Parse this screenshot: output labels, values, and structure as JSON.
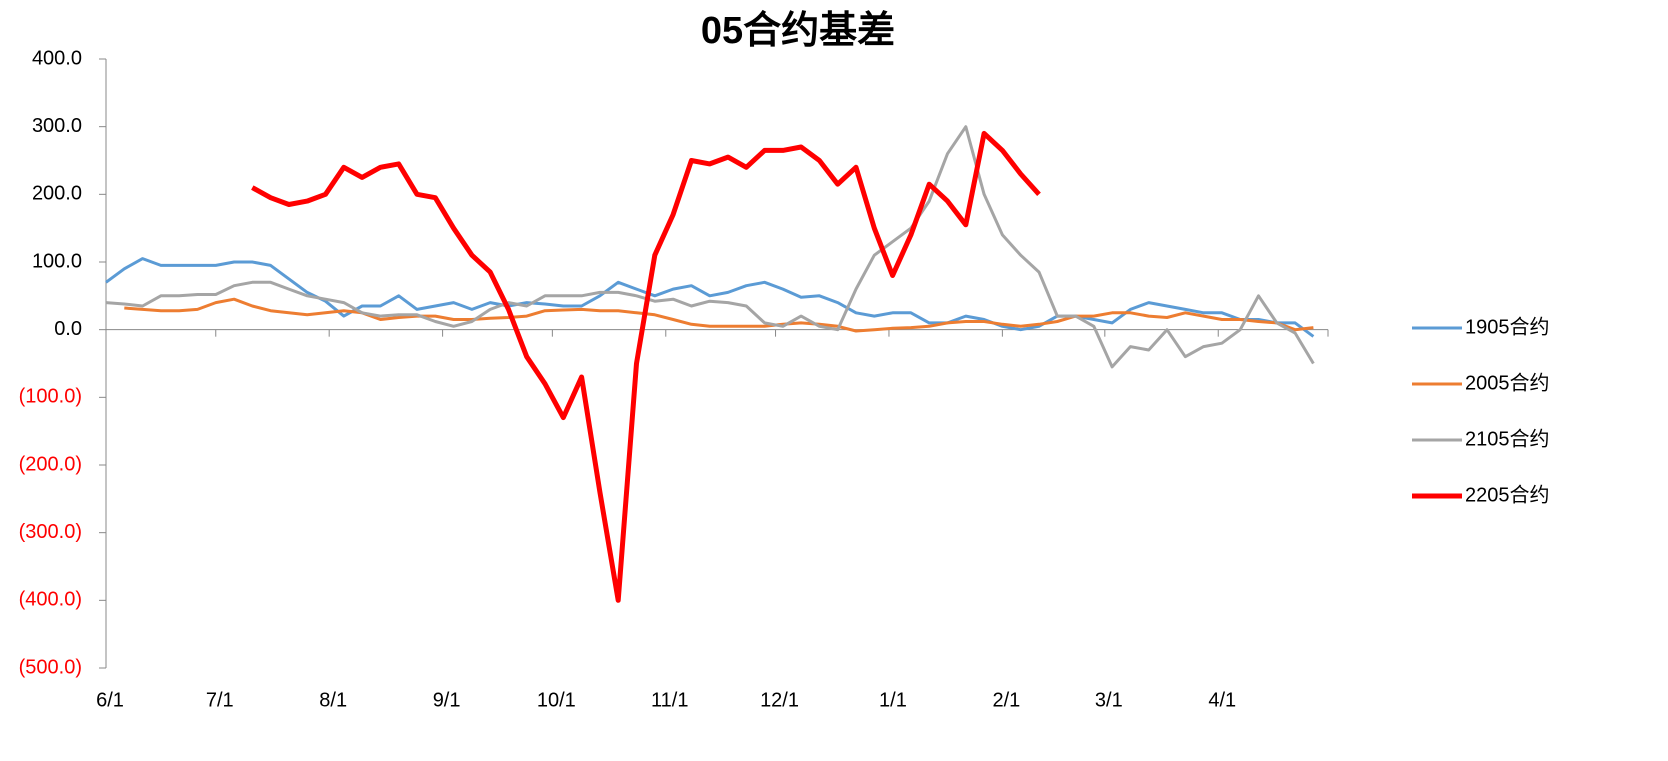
{
  "chart_data": {
    "type": "line",
    "title": "05合约基差",
    "x": [
      0,
      5,
      10,
      15,
      20,
      25,
      30,
      35,
      40,
      45,
      50,
      55,
      60,
      65,
      70,
      75,
      80,
      85,
      90,
      95,
      100,
      105,
      110,
      115,
      120,
      125,
      130,
      135,
      140,
      145,
      150,
      155,
      160,
      165,
      170,
      175,
      180,
      185,
      190,
      195,
      200,
      205,
      210,
      215,
      220,
      225,
      230,
      235,
      240,
      245,
      250,
      255,
      260,
      265,
      270,
      275,
      280,
      285,
      290,
      295,
      300,
      305,
      310,
      315,
      320,
      325,
      330
    ],
    "xlim": [
      0,
      334
    ],
    "xticks": [
      {
        "value": 0,
        "label": "6/1"
      },
      {
        "value": 30,
        "label": "7/1"
      },
      {
        "value": 61,
        "label": "8/1"
      },
      {
        "value": 92,
        "label": "9/1"
      },
      {
        "value": 122,
        "label": "10/1"
      },
      {
        "value": 153,
        "label": "11/1"
      },
      {
        "value": 183,
        "label": "12/1"
      },
      {
        "value": 214,
        "label": "1/1"
      },
      {
        "value": 245,
        "label": "2/1"
      },
      {
        "value": 273,
        "label": "3/1"
      },
      {
        "value": 304,
        "label": "4/1"
      }
    ],
    "ylim": [
      -500,
      400
    ],
    "yticks": [
      {
        "value": 400,
        "label": "400.0"
      },
      {
        "value": 300,
        "label": "300.0"
      },
      {
        "value": 200,
        "label": "200.0"
      },
      {
        "value": 100,
        "label": "100.0"
      },
      {
        "value": 0,
        "label": "0.0"
      },
      {
        "value": -100,
        "label": "(100.0)"
      },
      {
        "value": -200,
        "label": "(200.0)"
      },
      {
        "value": -300,
        "label": "(300.0)"
      },
      {
        "value": -400,
        "label": "(400.0)"
      },
      {
        "value": -500,
        "label": "(500.0)"
      }
    ],
    "negative_tick_color": "#ff0000",
    "grid": false,
    "legend": "right",
    "series": [
      {
        "name": "1905合约",
        "color": "#5b9bd5",
        "linewidth": 3,
        "values": [
          70,
          90,
          105,
          95,
          95,
          95,
          95,
          100,
          100,
          95,
          75,
          55,
          42,
          20,
          35,
          35,
          50,
          30,
          35,
          40,
          30,
          40,
          35,
          40,
          38,
          35,
          35,
          50,
          70,
          60,
          50,
          60,
          65,
          50,
          55,
          65,
          70,
          60,
          48,
          50,
          40,
          25,
          20,
          25,
          25,
          10,
          10,
          20,
          15,
          5,
          0,
          5,
          20,
          20,
          15,
          10,
          30,
          40,
          35,
          30,
          25,
          25,
          15,
          15,
          10,
          10,
          -10
        ]
      },
      {
        "name": "2005合约",
        "color": "#ed7d31",
        "linewidth": 3,
        "values": [
          null,
          32,
          30,
          28,
          28,
          30,
          40,
          45,
          35,
          28,
          25,
          22,
          25,
          28,
          25,
          15,
          18,
          20,
          20,
          15,
          15,
          17,
          18,
          20,
          28,
          29,
          30,
          28,
          28,
          25,
          22,
          15,
          8,
          5,
          5,
          5,
          5,
          8,
          10,
          8,
          5,
          -2,
          0,
          2,
          3,
          5,
          10,
          12,
          12,
          8,
          5,
          8,
          12,
          20,
          20,
          25,
          25,
          20,
          18,
          25,
          20,
          15,
          15,
          12,
          10,
          0,
          3
        ]
      },
      {
        "name": "2105合约",
        "color": "#a5a5a5",
        "linewidth": 3,
        "values": [
          40,
          38,
          35,
          50,
          50,
          52,
          52,
          65,
          70,
          70,
          60,
          50,
          45,
          40,
          25,
          20,
          22,
          22,
          12,
          5,
          12,
          30,
          40,
          35,
          50,
          50,
          50,
          55,
          55,
          50,
          42,
          45,
          35,
          42,
          40,
          35,
          10,
          5,
          20,
          5,
          0,
          60,
          110,
          130,
          150,
          190,
          260,
          300,
          200,
          140,
          110,
          85,
          20,
          20,
          5,
          -55,
          -25,
          -30,
          0,
          -40,
          -25,
          -20,
          0,
          50,
          10,
          -5,
          -50
        ]
      },
      {
        "name": "2205合约",
        "color": "#ff0000",
        "linewidth": 5,
        "values": [
          null,
          null,
          null,
          null,
          null,
          null,
          null,
          null,
          210,
          195,
          185,
          190,
          200,
          240,
          225,
          240,
          245,
          200,
          195,
          150,
          110,
          85,
          30,
          -40,
          -80,
          -130,
          -70,
          -240,
          -400,
          -50,
          110,
          170,
          250,
          245,
          255,
          240,
          265,
          265,
          270,
          250,
          215,
          240,
          150,
          80,
          140,
          215,
          190,
          155,
          290,
          265,
          230,
          200,
          null,
          null,
          null,
          null,
          null,
          null,
          null,
          null,
          null,
          null,
          null,
          null,
          null,
          null,
          null
        ]
      }
    ]
  }
}
